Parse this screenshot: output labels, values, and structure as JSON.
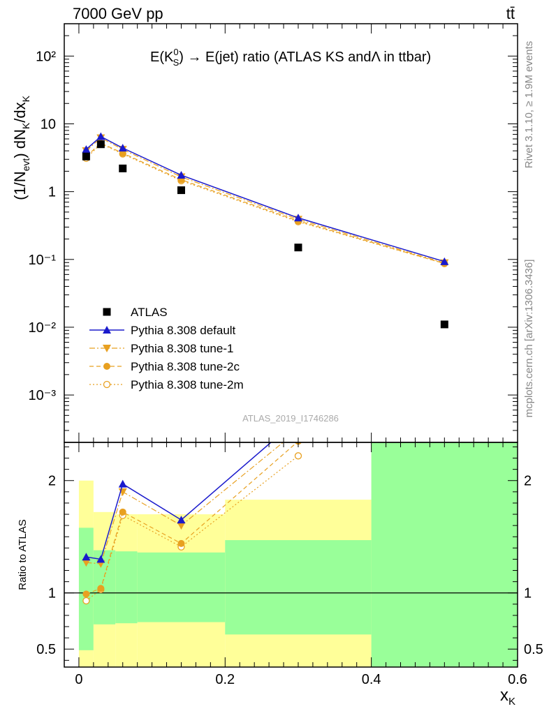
{
  "header": {
    "energy_label": "7000 GeV pp",
    "process_label": "tt̄",
    "title_prefix": "E(K",
    "title_sup": "0",
    "title_sub": "S",
    "title_suffix": ") → E(jet) ratio (ATLAS KS andΛ in ttbar)",
    "watermark": "ATLAS_2019_I1746286",
    "side_text_top": "Rivet 3.1.10, ≥ 1.9M events",
    "side_text_bottom": "mcplots.cern.ch [arXiv:1306.3436]"
  },
  "colors": {
    "atlas": "#000000",
    "default": "#1a1acc",
    "tunes": "#e8a020",
    "band_green": "#99ff99",
    "band_yellow": "#ffff99"
  },
  "chart_data": [
    {
      "type": "scatter",
      "panel": "main",
      "ylabel": "(1/N_evt) dN_K/dx_K",
      "yscale": "log",
      "ylim": [
        0.0002,
        300
      ],
      "xlim": [
        -0.02,
        0.6
      ],
      "y_tick_labels": [
        "10⁻³",
        "10⁻²",
        "10⁻¹",
        "1",
        "10",
        "10²"
      ],
      "legend_position": "lower-left",
      "series": [
        {
          "name": "ATLAS",
          "x": [
            0.01,
            0.03,
            0.06,
            0.14,
            0.3,
            0.5
          ],
          "y": [
            3.3,
            5.0,
            2.2,
            1.05,
            0.15,
            0.011
          ],
          "marker": "square",
          "line": "none"
        },
        {
          "name": "Pythia 8.308 default",
          "x": [
            0.01,
            0.03,
            0.06,
            0.14,
            0.3,
            0.5
          ],
          "y": [
            4.2,
            6.5,
            4.4,
            1.75,
            0.41,
            0.093
          ],
          "marker": "triangle-up",
          "line": "solid"
        },
        {
          "name": "Pythia 8.308 tune-1",
          "x": [
            0.01,
            0.03,
            0.06,
            0.14,
            0.3,
            0.5
          ],
          "y": [
            4.0,
            6.2,
            4.2,
            1.65,
            0.39,
            0.089
          ],
          "marker": "triangle-down",
          "line": "dashdot"
        },
        {
          "name": "Pythia 8.308 tune-2c",
          "x": [
            0.01,
            0.03,
            0.06,
            0.14,
            0.3,
            0.5
          ],
          "y": [
            3.3,
            5.2,
            3.7,
            1.5,
            0.37,
            0.087
          ],
          "marker": "circle",
          "line": "dashed"
        },
        {
          "name": "Pythia 8.308 tune-2m",
          "x": [
            0.01,
            0.03,
            0.06,
            0.14,
            0.3,
            0.5
          ],
          "y": [
            3.1,
            5.1,
            3.6,
            1.45,
            0.36,
            0.087
          ],
          "marker": "circle-open",
          "line": "dotted"
        }
      ]
    },
    {
      "type": "line",
      "panel": "ratio",
      "ylabel": "Ratio to ATLAS",
      "xlabel": "x_K",
      "ylim": [
        0.34,
        2.34
      ],
      "xlim": [
        -0.02,
        0.6
      ],
      "x_tick_labels": [
        "0",
        "0.2",
        "0.4",
        "0.6"
      ],
      "y_tick_labels": [
        "0.5",
        "1",
        "2"
      ],
      "bands": [
        {
          "x0": 0.0,
          "x1": 0.02,
          "green": [
            0.49,
            1.58
          ],
          "yellow": [
            0.0,
            2.0
          ]
        },
        {
          "x0": 0.02,
          "x1": 0.05,
          "green": [
            0.72,
            1.38
          ],
          "yellow": [
            0.0,
            1.72
          ]
        },
        {
          "x0": 0.05,
          "x1": 0.08,
          "green": [
            0.73,
            1.37
          ],
          "yellow": [
            0.0,
            1.7
          ]
        },
        {
          "x0": 0.08,
          "x1": 0.2,
          "green": [
            0.74,
            1.36
          ],
          "yellow": [
            0.0,
            1.7
          ]
        },
        {
          "x0": 0.2,
          "x1": 0.4,
          "green": [
            0.63,
            1.47
          ],
          "yellow": [
            0.0,
            1.83
          ]
        },
        {
          "x0": 0.4,
          "x1": 0.6,
          "green": [
            0.0,
            3.0
          ],
          "yellow": [
            0.0,
            3.0
          ]
        }
      ],
      "series": [
        {
          "name": "Pythia 8.308 default",
          "x": [
            0.01,
            0.03,
            0.06,
            0.14,
            0.3
          ],
          "y": [
            1.32,
            1.3,
            1.97,
            1.65,
            2.55
          ]
        },
        {
          "name": "Pythia 8.308 tune-1",
          "x": [
            0.01,
            0.03,
            0.06,
            0.14,
            0.3
          ],
          "y": [
            1.27,
            1.26,
            1.9,
            1.6,
            2.45
          ]
        },
        {
          "name": "Pythia 8.308 tune-2c",
          "x": [
            0.01,
            0.03,
            0.06,
            0.14,
            0.3
          ],
          "y": [
            0.99,
            1.04,
            1.72,
            1.44,
            2.35
          ]
        },
        {
          "name": "Pythia 8.308 tune-2m",
          "x": [
            0.01,
            0.03,
            0.06,
            0.14,
            0.3
          ],
          "y": [
            0.93,
            1.03,
            1.69,
            1.41,
            2.22
          ]
        }
      ]
    }
  ]
}
